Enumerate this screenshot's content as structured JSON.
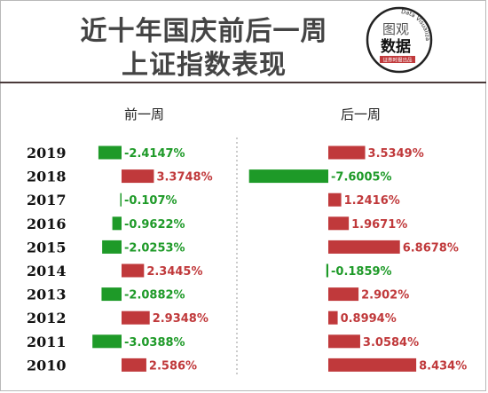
{
  "header": {
    "title_line1": "近十年国庆前后一周",
    "title_line2": "上证指数表现"
  },
  "logo": {
    "line1": "图观",
    "line2": "数据",
    "ring_text": "Data Visualization",
    "badge_text": "证券时报出品",
    "ring_color": "#222222"
  },
  "colors": {
    "positive": "#c0393b",
    "negative": "#1e9a28",
    "separator": "#4a3a3a"
  },
  "chart_data": [
    {
      "type": "bar",
      "orientation": "horizontal",
      "title": "前一周",
      "categories": [
        "2019",
        "2018",
        "2017",
        "2016",
        "2015",
        "2014",
        "2013",
        "2012",
        "2011",
        "2010"
      ],
      "values": [
        -2.4147,
        3.3748,
        -0.107,
        -0.9622,
        -2.0253,
        2.3445,
        -2.0882,
        2.9348,
        -3.0388,
        2.586
      ],
      "labels": [
        "-2.4147%",
        "3.3748%",
        "-0.107%",
        "-0.9622%",
        "-2.0253%",
        "2.3445%",
        "-2.0882%",
        "2.9348%",
        "-3.0388%",
        "2.586%"
      ]
    },
    {
      "type": "bar",
      "orientation": "horizontal",
      "title": "后一周",
      "categories": [
        "2019",
        "2018",
        "2017",
        "2016",
        "2015",
        "2014",
        "2013",
        "2012",
        "2011",
        "2010"
      ],
      "values": [
        3.5349,
        -7.6005,
        1.2416,
        1.9671,
        6.8678,
        -0.1859,
        2.902,
        0.8994,
        3.0584,
        8.434
      ],
      "labels": [
        "3.5349%",
        "-7.6005%",
        "1.2416%",
        "1.9671%",
        "6.8678%",
        "-0.1859%",
        "2.902%",
        "0.8994%",
        "3.0584%",
        "8.434%"
      ]
    }
  ]
}
